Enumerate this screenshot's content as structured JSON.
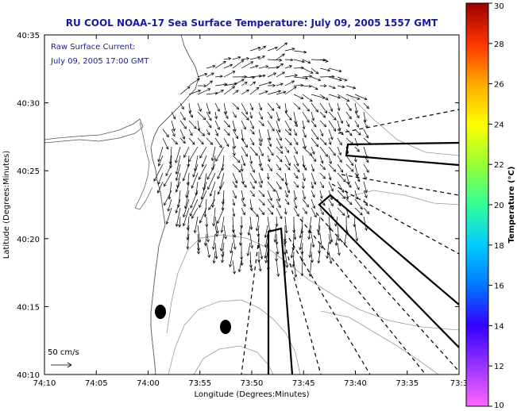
{
  "title": "RU COOL  NOAA-17  Sea Surface Temperature:  July 09, 2005 1557 GMT",
  "annotation": {
    "line1": "Raw Surface Current:",
    "line2": "July 09, 2005 17:00 GMT"
  },
  "scale_label": "50 cm/s",
  "xaxis": {
    "label": "Longitude (Degrees:Minutes)",
    "ticks": [
      "74:10",
      "74:05",
      "74:00",
      "73:55",
      "73:50",
      "73:45",
      "73:40",
      "73:35",
      "73:3"
    ]
  },
  "yaxis": {
    "label": "Latitude (Degrees:Minutes)",
    "ticks": [
      "40:10",
      "40:15",
      "40:20",
      "40:25",
      "40:30",
      "40:35"
    ]
  },
  "colorbar": {
    "label": "Temperature (°C)",
    "ticks": [
      "10",
      "12",
      "14",
      "16",
      "18",
      "20",
      "22",
      "24",
      "26",
      "28",
      "30"
    ],
    "colors": [
      "#ff66ff",
      "#9933ff",
      "#3300ff",
      "#0077ff",
      "#00ccff",
      "#33ff99",
      "#99ff33",
      "#ffff00",
      "#ffaa00",
      "#ff3300",
      "#990000"
    ]
  }
}
